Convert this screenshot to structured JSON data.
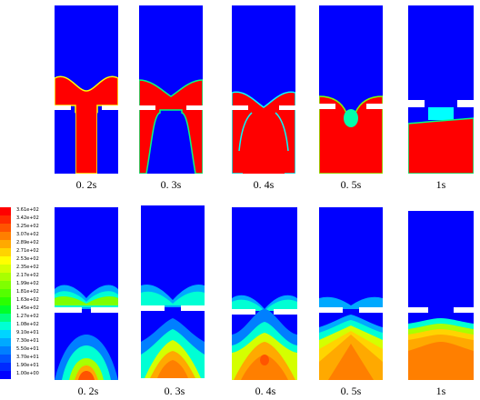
{
  "top_row": {
    "captions": [
      "0. 2s",
      "0. 3s",
      "0. 4s",
      "0. 5s",
      "1s"
    ]
  },
  "bottom_row": {
    "captions": [
      "0. 2s",
      "0. 3s",
      "0. 4s",
      "0. 5s",
      "1s"
    ]
  },
  "colorbar": {
    "labels": [
      "3.61e+02",
      "3.42e+02",
      "3.25e+02",
      "3.07e+02",
      "2.89e+02",
      "2.71e+02",
      "2.53e+02",
      "2.35e+02",
      "2.17e+02",
      "1.99e+02",
      "1.81e+02",
      "1.63e+02",
      "1.45e+02",
      "1.27e+02",
      "1.08e+02",
      "9.10e+01",
      "7.30e+01",
      "5.50e+01",
      "3.70e+01",
      "1.90e+01",
      "1.00e+00"
    ],
    "colors": [
      "#ff0000",
      "#ff2a00",
      "#ff5400",
      "#ff7f00",
      "#ffa900",
      "#ffd400",
      "#ffff00",
      "#d4ff00",
      "#a9ff00",
      "#7fff00",
      "#54ff00",
      "#2aff00",
      "#00ff2a",
      "#00ff7f",
      "#00ffd4",
      "#00d4ff",
      "#00a9ff",
      "#007fff",
      "#0054ff",
      "#002aff",
      "#0000ff"
    ]
  },
  "colors": {
    "blue": "#0000ff",
    "red": "#ff0000"
  }
}
